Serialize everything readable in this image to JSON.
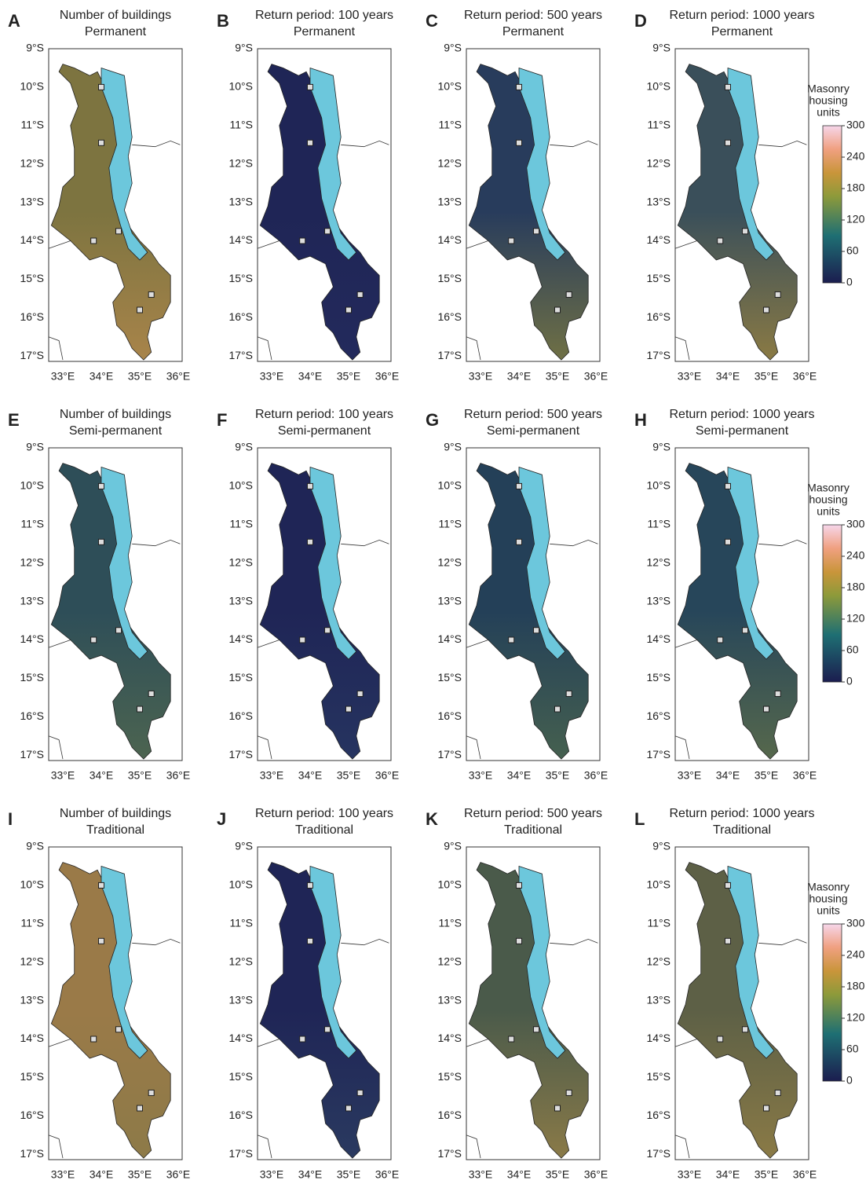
{
  "panels": [
    {
      "letter": "A",
      "title": [
        "Number of buildings",
        "Permanent"
      ]
    },
    {
      "letter": "B",
      "title": [
        "Return period: 100 years",
        "Permanent"
      ]
    },
    {
      "letter": "C",
      "title": [
        "Return period: 500 years",
        "Permanent"
      ]
    },
    {
      "letter": "D",
      "title": [
        "Return period: 1000 years",
        "Permanent"
      ]
    },
    {
      "letter": "E",
      "title": [
        "Number of buildings",
        "Semi-permanent"
      ]
    },
    {
      "letter": "F",
      "title": [
        "Return period: 100 years",
        "Semi-permanent"
      ]
    },
    {
      "letter": "G",
      "title": [
        "Return period: 500 years",
        "Semi-permanent"
      ]
    },
    {
      "letter": "H",
      "title": [
        "Return period: 1000 years",
        "Semi-permanent"
      ]
    },
    {
      "letter": "I",
      "title": [
        "Number of buildings",
        "Traditional"
      ]
    },
    {
      "letter": "J",
      "title": [
        "Return period: 100 years",
        "Traditional"
      ]
    },
    {
      "letter": "K",
      "title": [
        "Return period: 500 years",
        "Traditional"
      ]
    },
    {
      "letter": "L",
      "title": [
        "Return period: 1000 years",
        "Traditional"
      ]
    }
  ],
  "axes": {
    "yticks": [
      "9°S",
      "10°S",
      "11°S",
      "12°S",
      "13°S",
      "14°S",
      "15°S",
      "16°S",
      "17°S"
    ],
    "xticks": [
      "33°E",
      "34°E",
      "35°E",
      "36°E"
    ]
  },
  "colorbar": {
    "title": [
      "Masonry",
      "housing",
      "units"
    ],
    "ticks": [
      0,
      60,
      120,
      180,
      240,
      300
    ],
    "lim": [
      0,
      300
    ]
  }
}
